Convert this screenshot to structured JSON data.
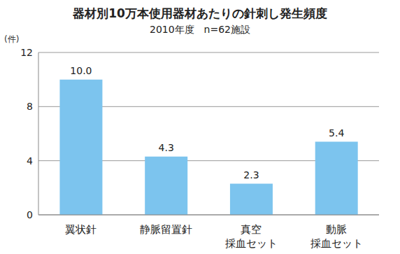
{
  "chart_data": {
    "type": "bar",
    "title": "器材別10万本使用器材あたりの針刺し発生頻度",
    "subtitle": "2010年度　n=62施設",
    "y_label": "(件)",
    "categories": [
      "翼状針",
      "静脈留置針",
      "真空\n採血セット",
      "動脈\n採血セット"
    ],
    "values": [
      10.0,
      4.3,
      2.3,
      5.4
    ],
    "value_labels": [
      "10.0",
      "4.3",
      "2.3",
      "5.4"
    ],
    "color": "#7cc4ee",
    "ylim": [
      0,
      12
    ],
    "yticks": [
      0,
      4,
      8,
      12
    ],
    "grid": true,
    "data_labels": true
  }
}
